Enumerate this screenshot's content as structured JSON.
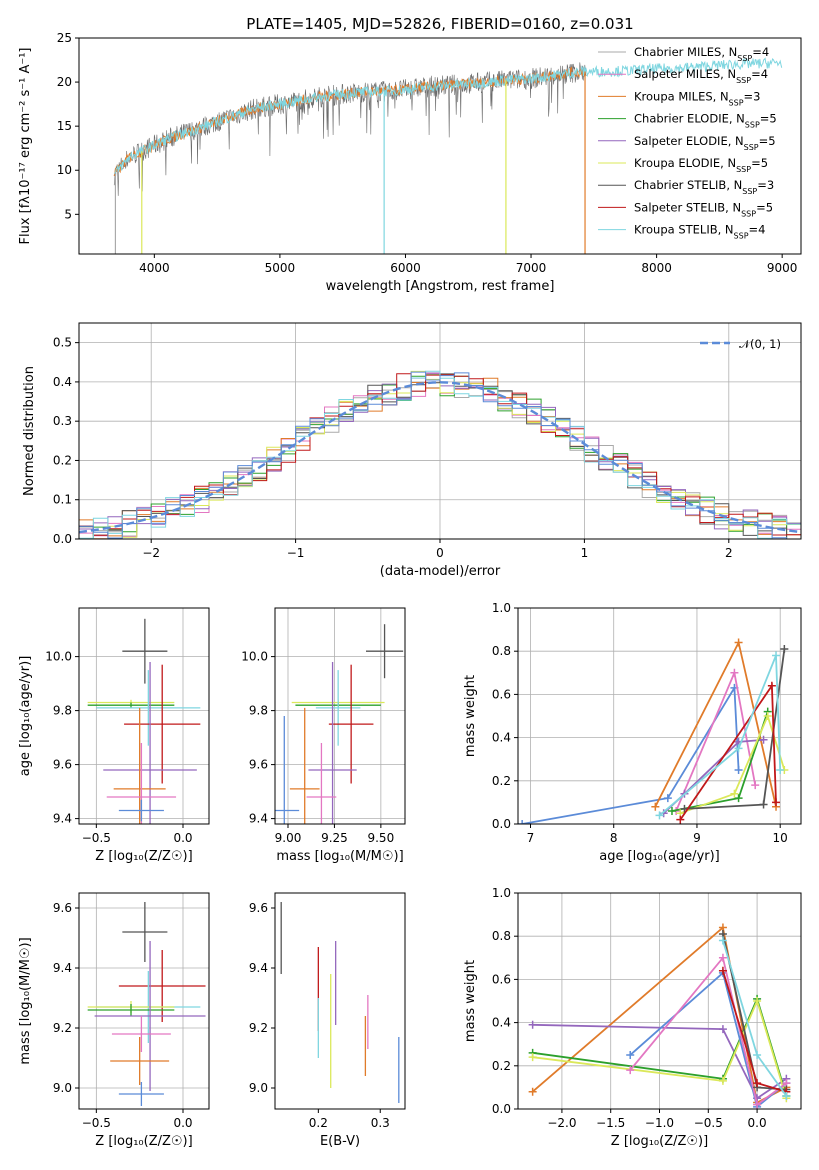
{
  "figure": {
    "title": "PLATE=1405, MJD=52826, FIBERID=0160, z=0.031"
  },
  "colors": {
    "Chabrier MILES": "#aaaaaa",
    "Salpeter MILES": "#e377c2",
    "Kroupa MILES": "#e07b2a",
    "Chabrier ELODIE": "#2ca02c",
    "Salpeter ELODIE": "#9467bd",
    "Kroupa ELODIE": "#dbe85a",
    "Chabrier STELIB": "#555555",
    "Salpeter STELIB": "#c0181a",
    "Kroupa STELIB": "#7fd6e0",
    "model_blue": "#5b8bd8"
  },
  "chart_data": [
    {
      "id": "spectrum",
      "type": "line",
      "title": "PLATE=1405, MJD=52826, FIBERID=0160, z=0.031",
      "xlabel": "wavelength [Angstrom, rest frame]",
      "ylabel": "Flux [fλ10⁻¹⁷ erg cm⁻² s⁻¹ A⁻¹]",
      "xlim": [
        3400,
        9150
      ],
      "ylim": [
        0.5,
        25
      ],
      "xticks": [
        4000,
        5000,
        6000,
        7000,
        8000,
        9000
      ],
      "yticks": [
        5,
        10,
        15,
        20,
        25
      ],
      "grid": false,
      "legend_position": "upper-right",
      "legend": [
        {
          "label": "Chabrier MILES, N",
          "sub": "SSP",
          "suffix": "=4",
          "color": "#aaaaaa"
        },
        {
          "label": "Salpeter MILES, N",
          "sub": "SSP",
          "suffix": "=4",
          "color": "#e377c2"
        },
        {
          "label": "Kroupa MILES, N",
          "sub": "SSP",
          "suffix": "=3",
          "color": "#e07b2a"
        },
        {
          "label": "Chabrier ELODIE, N",
          "sub": "SSP",
          "suffix": "=5",
          "color": "#2ca02c"
        },
        {
          "label": "Salpeter ELODIE, N",
          "sub": "SSP",
          "suffix": "=5",
          "color": "#9467bd"
        },
        {
          "label": "Kroupa ELODIE, N",
          "sub": "SSP",
          "suffix": "=5",
          "color": "#dbe85a"
        },
        {
          "label": "Chabrier STELIB, N",
          "sub": "SSP",
          "suffix": "=3",
          "color": "#555555"
        },
        {
          "label": "Salpeter STELIB, N",
          "sub": "SSP",
          "suffix": "=5",
          "color": "#c0181a"
        },
        {
          "label": "Kroupa STELIB, N",
          "sub": "SSP",
          "suffix": "=4",
          "color": "#7fd6e0"
        }
      ],
      "continuum": {
        "x": [
          3680,
          3800,
          3950,
          4100,
          4300,
          4500,
          4800,
          5000,
          5300,
          5600,
          5900,
          6200,
          6500,
          6800,
          7000,
          7200,
          7400,
          7600,
          7800,
          8000,
          8200,
          8400,
          8600,
          8800,
          9000
        ],
        "y": [
          9.5,
          11.5,
          12.5,
          13.5,
          14.5,
          15.5,
          17.0,
          17.5,
          18.3,
          18.8,
          19.0,
          19.5,
          19.8,
          20.2,
          20.4,
          20.8,
          21.2,
          21.2,
          21.3,
          21.5,
          21.6,
          21.8,
          22.0,
          22.1,
          22.2
        ]
      },
      "model_ranges": [
        {
          "color": "#e07b2a",
          "x": [
            3680,
            7430
          ]
        },
        {
          "color": "#7fd6e0",
          "x": [
            3680,
            9000
          ]
        }
      ]
    },
    {
      "id": "residuals",
      "type": "histogram",
      "xlabel": "(data-model)/error",
      "ylabel": "Normed distribution",
      "xlim": [
        -2.5,
        2.5
      ],
      "ylim": [
        0,
        0.55
      ],
      "xticks": [
        -2,
        -1,
        0,
        1,
        2
      ],
      "yticks": [
        0.0,
        0.1,
        0.2,
        0.3,
        0.4,
        0.5
      ],
      "grid": true,
      "legend_position": "upper-right",
      "legend": [
        {
          "label": "𝒩(0, 1)",
          "color": "#5b8bd8"
        }
      ],
      "bin_width": 0.1,
      "bin_start": -2.5
    },
    {
      "id": "age_vs_Z",
      "type": "errorbar",
      "xlabel": "Z [log₁₀(Z/Z☉)]",
      "ylabel": "age  [log₁₀(age/yr)]",
      "xlim": [
        -0.6,
        0.15
      ],
      "ylim": [
        9.38,
        10.18
      ],
      "xticks": [
        -0.5,
        0.0
      ],
      "yticks": [
        9.4,
        9.6,
        9.8,
        10.0
      ],
      "grid": true,
      "points": [
        {
          "color": "#555555",
          "x": -0.22,
          "xerr": 0.13,
          "y": 10.02,
          "yerr": 0.12
        },
        {
          "color": "#dbe85a",
          "x": -0.3,
          "xerr": 0.25,
          "y": 9.83,
          "yerr": 0.01
        },
        {
          "color": "#2ca02c",
          "x": -0.3,
          "xerr": 0.25,
          "y": 9.82,
          "yerr": 0.01
        },
        {
          "color": "#7fd6e0",
          "x": -0.2,
          "xerr": 0.3,
          "y": 9.81,
          "yerr": 0.14
        },
        {
          "color": "#c0181a",
          "x": -0.12,
          "xerr": 0.22,
          "y": 9.75,
          "yerr": 0.22
        },
        {
          "color": "#9467bd",
          "x": -0.19,
          "xerr": 0.27,
          "y": 9.58,
          "yerr": 0.4
        },
        {
          "color": "#e07b2a",
          "x": -0.25,
          "xerr": 0.15,
          "y": 9.51,
          "yerr": 0.3
        },
        {
          "color": "#e377c2",
          "x": -0.24,
          "xerr": 0.2,
          "y": 9.48,
          "yerr": 0.2
        },
        {
          "color": "#5b8bd8",
          "x": -0.24,
          "xerr": 0.13,
          "y": 9.43,
          "yerr": 0.04
        }
      ]
    },
    {
      "id": "age_vs_mass",
      "type": "errorbar",
      "xlabel": "mass [log₁₀(M/M☉)]",
      "ylabel": "",
      "xlim": [
        8.93,
        9.63
      ],
      "ylim": [
        9.38,
        10.18
      ],
      "xticks": [
        9.0,
        9.25,
        9.5
      ],
      "yticks": [
        9.4,
        9.6,
        9.8,
        10.0
      ],
      "grid": true,
      "points": [
        {
          "color": "#555555",
          "x": 9.52,
          "xerr": 0.1,
          "y": 10.02,
          "yerr": 0.1
        },
        {
          "color": "#dbe85a",
          "x": 9.27,
          "xerr": 0.25,
          "y": 9.83,
          "yerr": 0.01
        },
        {
          "color": "#2ca02c",
          "x": 9.27,
          "xerr": 0.23,
          "y": 9.82,
          "yerr": 0.01
        },
        {
          "color": "#7fd6e0",
          "x": 9.27,
          "xerr": 0.12,
          "y": 9.81,
          "yerr": 0.14
        },
        {
          "color": "#c0181a",
          "x": 9.34,
          "xerr": 0.12,
          "y": 9.75,
          "yerr": 0.22
        },
        {
          "color": "#9467bd",
          "x": 9.24,
          "xerr": 0.13,
          "y": 9.58,
          "yerr": 0.4
        },
        {
          "color": "#e07b2a",
          "x": 9.09,
          "xerr": 0.08,
          "y": 9.51,
          "yerr": 0.3
        },
        {
          "color": "#e377c2",
          "x": 9.18,
          "xerr": 0.08,
          "y": 9.48,
          "yerr": 0.2
        },
        {
          "color": "#5b8bd8",
          "x": 8.98,
          "xerr": 0.08,
          "y": 9.43,
          "yerr": 0.35
        }
      ]
    },
    {
      "id": "weight_vs_age",
      "type": "line",
      "xlabel": "age  [log₁₀(age/yr)]",
      "ylabel": "mass weight",
      "xlim": [
        6.85,
        10.25
      ],
      "ylim": [
        0,
        1
      ],
      "xticks": [
        7,
        8,
        9,
        10
      ],
      "yticks": [
        0.0,
        0.2,
        0.4,
        0.6,
        0.8,
        1.0
      ],
      "grid": true,
      "series": [
        {
          "color": "#5b8bd8",
          "x": [
            6.9,
            8.65,
            9.45,
            9.5
          ],
          "y": [
            0.0,
            0.12,
            0.63,
            0.25
          ]
        },
        {
          "color": "#e07b2a",
          "x": [
            8.5,
            9.5,
            9.95
          ],
          "y": [
            0.08,
            0.84,
            0.08
          ]
        },
        {
          "color": "#e377c2",
          "x": [
            8.75,
            9.45,
            9.7
          ],
          "y": [
            0.06,
            0.7,
            0.18
          ]
        },
        {
          "color": "#9467bd",
          "x": [
            8.6,
            8.85,
            9.5,
            9.8
          ],
          "y": [
            0.05,
            0.14,
            0.38,
            0.39
          ]
        },
        {
          "color": "#2ca02c",
          "x": [
            8.7,
            9.5,
            9.85
          ],
          "y": [
            0.06,
            0.12,
            0.52
          ]
        },
        {
          "color": "#dbe85a",
          "x": [
            8.8,
            9.45,
            9.85,
            10.05
          ],
          "y": [
            0.05,
            0.14,
            0.5,
            0.25
          ]
        },
        {
          "color": "#555555",
          "x": [
            8.85,
            9.8,
            10.05
          ],
          "y": [
            0.07,
            0.09,
            0.81
          ]
        },
        {
          "color": "#c0181a",
          "x": [
            8.8,
            9.9,
            9.95
          ],
          "y": [
            0.02,
            0.64,
            0.1
          ]
        },
        {
          "color": "#7fd6e0",
          "x": [
            8.55,
            9.5,
            9.95,
            10.0
          ],
          "y": [
            0.04,
            0.35,
            0.78,
            0.25
          ]
        }
      ]
    },
    {
      "id": "mass_vs_Z",
      "type": "errorbar",
      "xlabel": "Z [log₁₀(Z/Z☉)]",
      "ylabel": "mass [log₁₀(M/M☉)]",
      "xlim": [
        -0.6,
        0.15
      ],
      "ylim": [
        8.93,
        9.65
      ],
      "xticks": [
        -0.5,
        0.0
      ],
      "yticks": [
        9.0,
        9.2,
        9.4,
        9.6
      ],
      "grid": true,
      "points": [
        {
          "color": "#555555",
          "x": -0.22,
          "xerr": 0.13,
          "y": 9.52,
          "yerr": 0.1
        },
        {
          "color": "#c0181a",
          "x": -0.12,
          "xerr": 0.25,
          "y": 9.34,
          "yerr": 0.12
        },
        {
          "color": "#7fd6e0",
          "x": -0.2,
          "xerr": 0.3,
          "y": 9.27,
          "yerr": 0.12
        },
        {
          "color": "#dbe85a",
          "x": -0.3,
          "xerr": 0.25,
          "y": 9.27,
          "yerr": 0.02
        },
        {
          "color": "#2ca02c",
          "x": -0.3,
          "xerr": 0.25,
          "y": 9.26,
          "yerr": 0.02
        },
        {
          "color": "#9467bd",
          "x": -0.19,
          "xerr": 0.32,
          "y": 9.24,
          "yerr": 0.25
        },
        {
          "color": "#e377c2",
          "x": -0.24,
          "xerr": 0.17,
          "y": 9.18,
          "yerr": 0.06
        },
        {
          "color": "#e07b2a",
          "x": -0.25,
          "xerr": 0.17,
          "y": 9.09,
          "yerr": 0.08
        },
        {
          "color": "#5b8bd8",
          "x": -0.24,
          "xerr": 0.13,
          "y": 8.98,
          "yerr": 0.04
        }
      ]
    },
    {
      "id": "mass_vs_ebv",
      "type": "errorbar",
      "xlabel": "E(B-V)",
      "ylabel": "",
      "xlim": [
        0.13,
        0.34
      ],
      "ylim": [
        8.93,
        9.65
      ],
      "xticks": [
        0.2,
        0.3
      ],
      "yticks": [
        9.0,
        9.2,
        9.4,
        9.6
      ],
      "grid": false,
      "points": [
        {
          "color": "#555555",
          "x": 0.14,
          "xerr": 0,
          "y": 9.5,
          "yerr": 0.12
        },
        {
          "color": "#c0181a",
          "x": 0.2,
          "xerr": 0,
          "y": 9.33,
          "yerr": 0.14
        },
        {
          "color": "#7fd6e0",
          "x": 0.2,
          "xerr": 0,
          "y": 9.2,
          "yerr": 0.1
        },
        {
          "color": "#dbe85a",
          "x": 0.22,
          "xerr": 0,
          "y": 9.19,
          "yerr": 0.19
        },
        {
          "color": "#9467bd",
          "x": 0.228,
          "xerr": 0,
          "y": 9.35,
          "yerr": 0.14
        },
        {
          "color": "#e377c2",
          "x": 0.28,
          "xerr": 0,
          "y": 9.22,
          "yerr": 0.09
        },
        {
          "color": "#e07b2a",
          "x": 0.276,
          "xerr": 0,
          "y": 9.14,
          "yerr": 0.1
        },
        {
          "color": "#5b8bd8",
          "x": 0.33,
          "xerr": 0,
          "y": 9.06,
          "yerr": 0.11
        }
      ]
    },
    {
      "id": "weight_vs_Z",
      "type": "line",
      "xlabel": "Z [log₁₀(Z/Z☉)]",
      "ylabel": "mass weight",
      "xlim": [
        -2.45,
        0.45
      ],
      "ylim": [
        0,
        1
      ],
      "xticks": [
        -2.0,
        -1.5,
        -1.0,
        -0.5,
        0.0
      ],
      "yticks": [
        0.0,
        0.2,
        0.4,
        0.6,
        0.8,
        1.0
      ],
      "grid": true,
      "series": [
        {
          "color": "#e07b2a",
          "x": [
            -2.3,
            -0.35,
            0.0,
            0.3
          ],
          "y": [
            0.08,
            0.84,
            0.03,
            0.1
          ]
        },
        {
          "color": "#9467bd",
          "x": [
            -2.3,
            -0.35,
            0.0,
            0.3
          ],
          "y": [
            0.39,
            0.37,
            0.05,
            0.14
          ]
        },
        {
          "color": "#2ca02c",
          "x": [
            -2.3,
            -0.35,
            0.0,
            0.3
          ],
          "y": [
            0.26,
            0.14,
            0.51,
            0.06
          ]
        },
        {
          "color": "#dbe85a",
          "x": [
            -2.3,
            -0.35,
            0.0,
            0.3
          ],
          "y": [
            0.24,
            0.13,
            0.5,
            0.05
          ]
        },
        {
          "color": "#5b8bd8",
          "x": [
            -1.3,
            -0.35,
            0.0,
            0.3
          ],
          "y": [
            0.25,
            0.63,
            0.01,
            0.12
          ]
        },
        {
          "color": "#e377c2",
          "x": [
            -1.3,
            -0.35,
            0.0,
            0.3
          ],
          "y": [
            0.18,
            0.7,
            0.02,
            0.12
          ]
        },
        {
          "color": "#555555",
          "x": [
            -0.35,
            0.0,
            0.3
          ],
          "y": [
            0.81,
            0.1,
            0.09
          ]
        },
        {
          "color": "#c0181a",
          "x": [
            -0.35,
            0.0,
            0.3
          ],
          "y": [
            0.64,
            0.12,
            0.08
          ]
        },
        {
          "color": "#7fd6e0",
          "x": [
            -0.35,
            0.0,
            0.3
          ],
          "y": [
            0.78,
            0.25,
            0.06
          ]
        }
      ]
    }
  ]
}
